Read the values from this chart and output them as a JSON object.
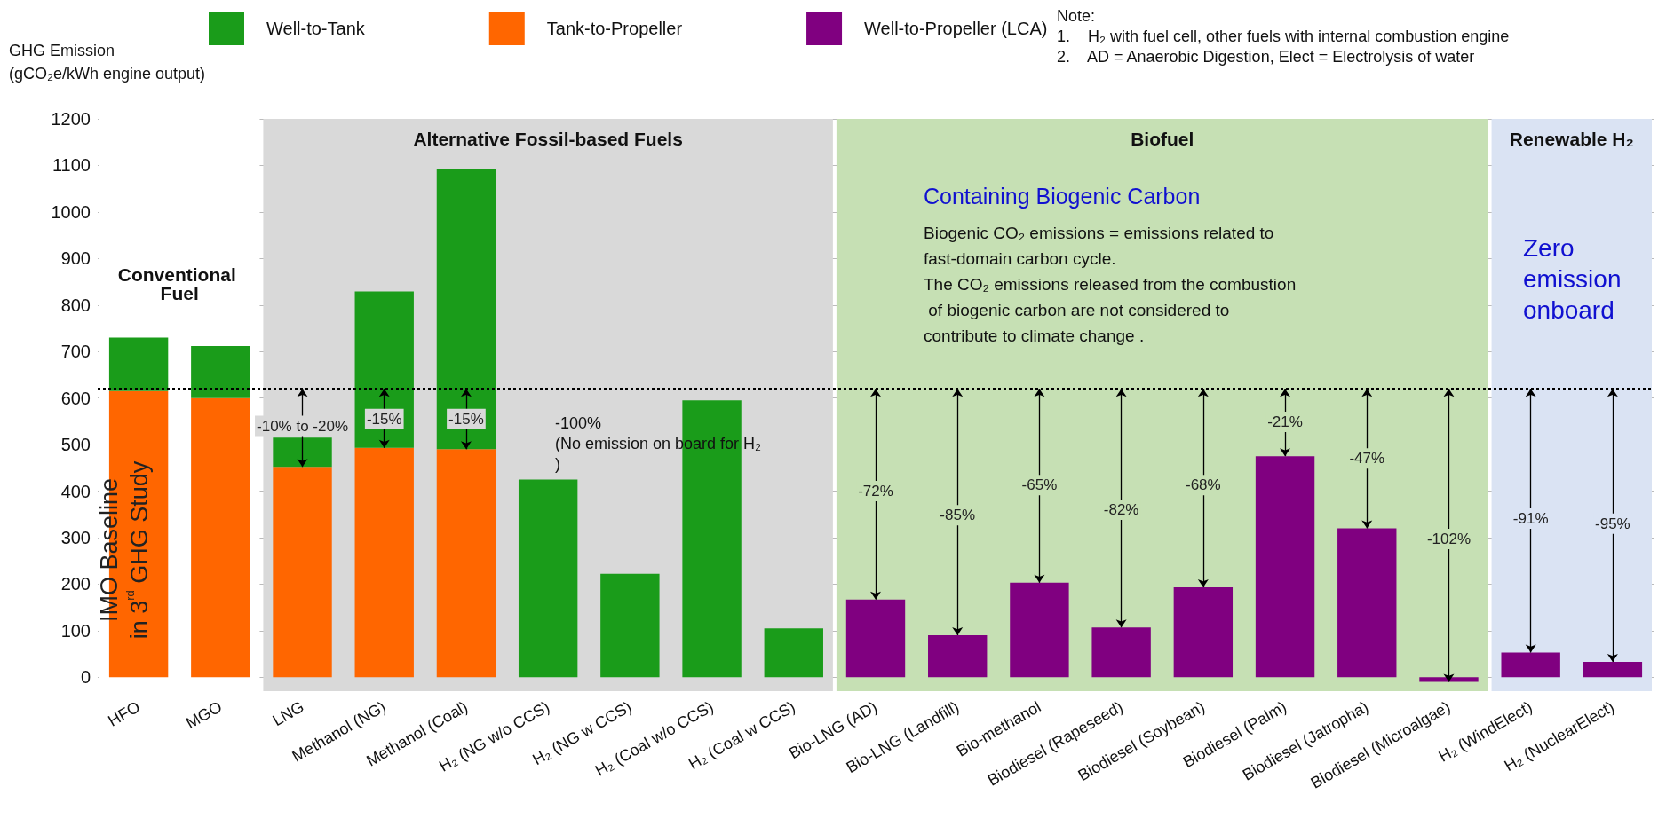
{
  "chart_data": {
    "type": "bar",
    "stacked": true,
    "ylabel": "GHG Emission\n(gCO₂e/kWh engine output)",
    "categories": [
      "HFO",
      "MGO",
      "LNG",
      "Methanol (NG)",
      "Methanol (Coal)",
      "H₂ (NG w/o CCS)",
      "H₂ (NG w CCS)",
      "H₂ (Coal w/o CCS)",
      "H₂ (Coal w CCS)",
      "Bio-LNG (AD)",
      "Bio-LNG (Landfill)",
      "Bio-methanol",
      "Biodiesel (Rapeseed)",
      "Biodiesel (Soybean)",
      "Biodiesel (Palm)",
      "Biodiesel (Jatropha)",
      "Biodiesel (Microalgae)",
      "H₂ (WindElect)",
      "H₂ (NuclearElect)"
    ],
    "series": [
      {
        "name": "Tank-to-Propeller",
        "color": "#ff6600",
        "values": [
          615,
          600,
          452,
          493,
          490,
          null,
          null,
          null,
          null,
          null,
          null,
          null,
          null,
          null,
          null,
          null,
          null,
          null,
          null
        ]
      },
      {
        "name": "Well-to-Tank",
        "color": "#1a9c1a",
        "values": [
          115,
          112,
          63,
          336,
          603,
          425,
          222,
          595,
          105,
          null,
          null,
          null,
          null,
          null,
          null,
          null,
          null,
          null,
          null
        ]
      },
      {
        "name": "Well-to-Propeller (LCA)",
        "color": "#800080",
        "values": [
          null,
          null,
          null,
          null,
          null,
          null,
          null,
          null,
          null,
          167,
          90,
          203,
          107,
          193,
          475,
          320,
          -10,
          53,
          33
        ]
      }
    ],
    "ylim": [
      -30,
      1200
    ],
    "yticks": [
      0,
      100,
      200,
      300,
      400,
      500,
      600,
      700,
      800,
      900,
      1000,
      1100,
      1200
    ],
    "grid": "y",
    "legend": "top",
    "ref_lines": [
      {
        "axis": "y",
        "value": 620,
        "color": "#000000",
        "line_style": "dotted"
      }
    ],
    "bands": [
      {
        "axis": "x",
        "from": "HFO",
        "to": "MGO",
        "label": "Conventional Fuel",
        "color": "#ffffff"
      },
      {
        "axis": "x",
        "from": "LNG",
        "to": "H₂ (Coal w CCS)",
        "label": "Alternative Fossil-based Fuels",
        "color": "#d9d9d9"
      },
      {
        "axis": "x",
        "from": "Bio-LNG (AD)",
        "to": "Biodiesel (Microalgae)",
        "label": "Biofuel",
        "color": "#c6e0b4"
      },
      {
        "axis": "x",
        "from": "H₂ (WindElect)",
        "to": "H₂ (NuclearElect)",
        "label": "Renewable H₂",
        "color": "#dae3f3"
      }
    ],
    "annotations": [
      "Note:\n1.    H₂ with fuel cell, other fuels with internal combustion engine\n2.    AD = Anaerobic Digestion, Elect = Electrolysis of water",
      "IMO Baseline\nin 3$^{rd}$ GHG Study",
      "-100%\n(No emission on board for H₂)",
      "Containing Biogenic Carbon",
      "Biogenic CO₂ emissions = emissions related to fast-domain carbon cycle.\nThe CO₂ emissions released from the combustion of biogenic carbon are not considered to contribute to climate change .",
      "Zero emission onboard",
      "-10% to -20%",
      "-15%",
      "-15%",
      "-72%",
      "-85%",
      "-65%",
      "-82%",
      "-68%",
      "-21%",
      "-47%",
      "-102%",
      "-91%",
      "-95%"
    ]
  }
}
